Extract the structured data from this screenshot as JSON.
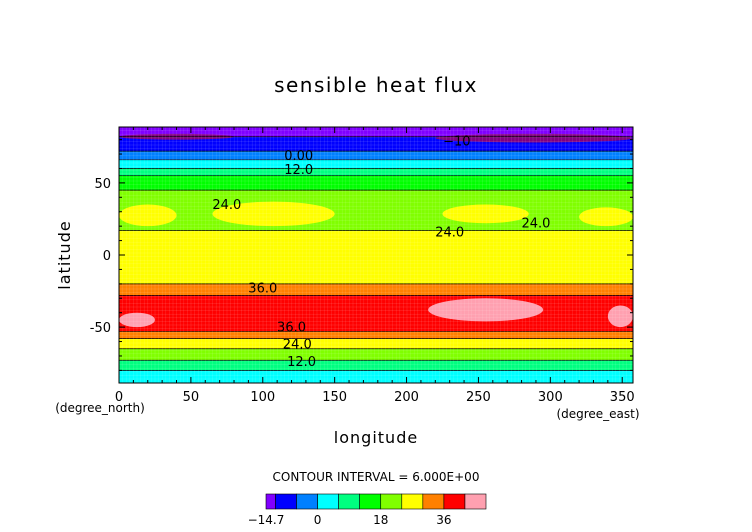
{
  "chart_data": {
    "type": "heatmap",
    "title": "sensible heat flux",
    "xlabel": "longitude",
    "ylabel": "latitude",
    "x_unit_label": "(degree_east)",
    "y_unit_label": "(degree_north)",
    "xlim": [
      0,
      357.5
    ],
    "ylim": [
      -88.75,
      88.75
    ],
    "x_ticks": [
      0,
      50,
      100,
      150,
      200,
      250,
      300,
      350
    ],
    "y_ticks": [
      -50,
      0,
      50
    ],
    "contour_interval_label": "CONTOUR INTERVAL = 6.000E+00",
    "colorbar": {
      "levels": [
        -14.7,
        -12,
        -6,
        0,
        6,
        12,
        18,
        24,
        30,
        36,
        42,
        48
      ],
      "labels": [
        "−14.7",
        "0",
        "18",
        "36"
      ],
      "label_values": [
        -14.7,
        0,
        18,
        36
      ],
      "colors": [
        "#8000ff",
        "#0000ff",
        "#0080ff",
        "#00ffff",
        "#00ff80",
        "#00ff00",
        "#80ff00",
        "#ffff00",
        "#ff8000",
        "#ff0000",
        "#ffa0b0"
      ]
    },
    "zonal_bands": [
      {
        "lat_from": 88.75,
        "lat_to": 82,
        "color": "#8000ff"
      },
      {
        "lat_from": 82,
        "lat_to": 72,
        "color": "#0000ff"
      },
      {
        "lat_from": 72,
        "lat_to": 66,
        "color": "#0080ff"
      },
      {
        "lat_from": 66,
        "lat_to": 60,
        "color": "#00ffff"
      },
      {
        "lat_from": 60,
        "lat_to": 55,
        "color": "#00ff80"
      },
      {
        "lat_from": 55,
        "lat_to": 45,
        "color": "#00ff00"
      },
      {
        "lat_from": 45,
        "lat_to": 17,
        "color": "#80ff00"
      },
      {
        "lat_from": 17,
        "lat_to": -20,
        "color": "#ffff00"
      },
      {
        "lat_from": -20,
        "lat_to": -28,
        "color": "#ff8000"
      },
      {
        "lat_from": -28,
        "lat_to": -53,
        "color": "#ff0000"
      },
      {
        "lat_from": -53,
        "lat_to": -58,
        "color": "#ff8000"
      },
      {
        "lat_from": -58,
        "lat_to": -65,
        "color": "#ffff00"
      },
      {
        "lat_from": -65,
        "lat_to": -73,
        "color": "#80ff00"
      },
      {
        "lat_from": -73,
        "lat_to": -80,
        "color": "#00ff80"
      },
      {
        "lat_from": -80,
        "lat_to": -88.75,
        "color": "#00ffff"
      }
    ],
    "regions": [
      {
        "lon": [
          0,
          40
        ],
        "lat": [
          35,
          20
        ],
        "color": "#ffff00"
      },
      {
        "lon": [
          65,
          150
        ],
        "lat": [
          37,
          20
        ],
        "color": "#ffff00"
      },
      {
        "lon": [
          225,
          285
        ],
        "lat": [
          35,
          22
        ],
        "color": "#ffff00"
      },
      {
        "lon": [
          320,
          357.5
        ],
        "lat": [
          33,
          20
        ],
        "color": "#ffff00"
      },
      {
        "lon": [
          0,
          25
        ],
        "lat": [
          -40,
          -50
        ],
        "color": "#ffa0b0"
      },
      {
        "lon": [
          215,
          295
        ],
        "lat": [
          -30,
          -46
        ],
        "color": "#ffa0b0"
      },
      {
        "lon": [
          340,
          357.5
        ],
        "lat": [
          -35,
          -50
        ],
        "color": "#ffa0b0"
      },
      {
        "lon": [
          0,
          80
        ],
        "lat": [
          84,
          80
        ],
        "color": "#800080"
      },
      {
        "lon": [
          220,
          357.5
        ],
        "lat": [
          84,
          78
        ],
        "color": "#800080"
      }
    ],
    "contour_labels": [
      {
        "text": "0.00",
        "lon": 125,
        "lat": 66
      },
      {
        "text": "12.0",
        "lon": 125,
        "lat": 56
      },
      {
        "text": "24.0",
        "lon": 75,
        "lat": 32
      },
      {
        "text": "24.0",
        "lon": 230,
        "lat": 13
      },
      {
        "text": "24.0",
        "lon": 290,
        "lat": 19
      },
      {
        "text": "36.0",
        "lon": 100,
        "lat": -26
      },
      {
        "text": "36.0",
        "lon": 120,
        "lat": -53
      },
      {
        "text": "24.0",
        "lon": 124,
        "lat": -65
      },
      {
        "text": "12.0",
        "lon": 127,
        "lat": -77
      },
      {
        "text": "−10",
        "lon": 235,
        "lat": 76
      }
    ]
  }
}
